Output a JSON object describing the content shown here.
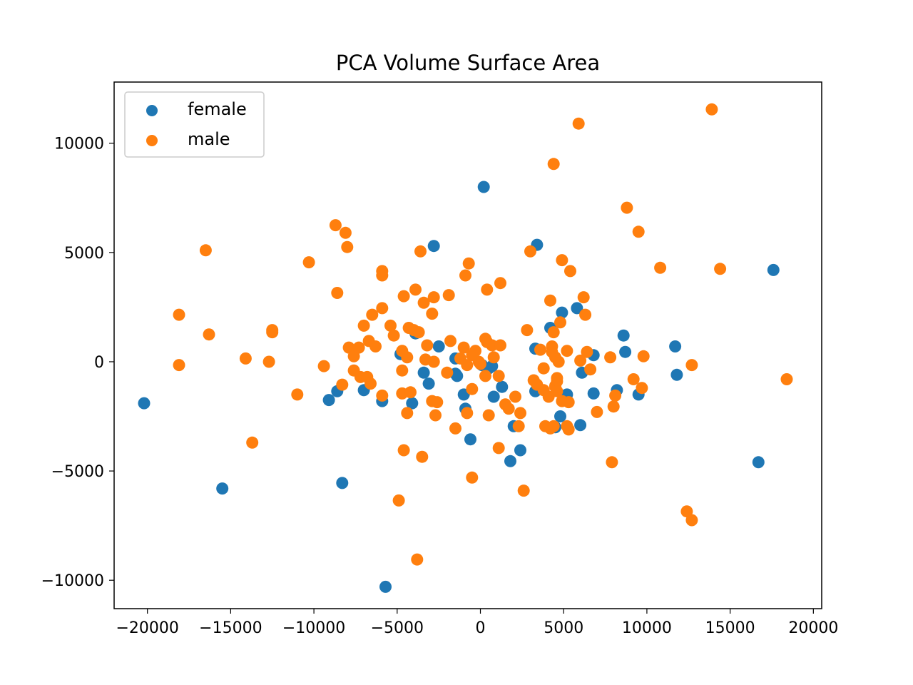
{
  "chart_data": {
    "type": "scatter",
    "title": "PCA Volume Surface Area",
    "xlabel": "",
    "ylabel": "",
    "xlim": [
      -22000,
      20500
    ],
    "ylim": [
      -11300,
      12800
    ],
    "x_ticks": [
      -20000,
      -15000,
      -10000,
      -5000,
      0,
      5000,
      10000,
      15000,
      20000
    ],
    "x_tick_labels": [
      "−20000",
      "−15000",
      "−10000",
      "−5000",
      "0",
      "5000",
      "10000",
      "15000",
      "20000"
    ],
    "y_ticks": [
      -10000,
      -5000,
      0,
      5000,
      10000
    ],
    "y_tick_labels": [
      "−10000",
      "−5000",
      "0",
      "5000",
      "10000"
    ],
    "grid": false,
    "legend_position": "upper-left",
    "series": [
      {
        "name": "female",
        "color": "#1f77b4",
        "points": [
          [
            -20200,
            -1900
          ],
          [
            -15500,
            -5800
          ],
          [
            -9100,
            -1750
          ],
          [
            -8600,
            -1350
          ],
          [
            -8300,
            -5550
          ],
          [
            -7000,
            -1300
          ],
          [
            -5900,
            -1800
          ],
          [
            -5700,
            -10300
          ],
          [
            -4800,
            350
          ],
          [
            -4100,
            -1900
          ],
          [
            -3900,
            1300
          ],
          [
            -3400,
            -500
          ],
          [
            -3100,
            -1000
          ],
          [
            -2800,
            5300
          ],
          [
            -2500,
            700
          ],
          [
            -1500,
            -550
          ],
          [
            -1500,
            150
          ],
          [
            -1400,
            -650
          ],
          [
            -1000,
            -1500
          ],
          [
            -900,
            -2150
          ],
          [
            -600,
            -3550
          ],
          [
            100,
            -150
          ],
          [
            200,
            8000
          ],
          [
            500,
            -300
          ],
          [
            700,
            -200
          ],
          [
            800,
            -1600
          ],
          [
            1300,
            -1150
          ],
          [
            1800,
            -4550
          ],
          [
            2000,
            -2950
          ],
          [
            2400,
            -4050
          ],
          [
            3300,
            -1350
          ],
          [
            3300,
            600
          ],
          [
            3400,
            5350
          ],
          [
            4200,
            1550
          ],
          [
            4500,
            -3000
          ],
          [
            4800,
            -2500
          ],
          [
            4900,
            2250
          ],
          [
            5200,
            -1500
          ],
          [
            5800,
            2450
          ],
          [
            6000,
            -2900
          ],
          [
            6100,
            -500
          ],
          [
            6800,
            300
          ],
          [
            6800,
            -1450
          ],
          [
            8200,
            -1300
          ],
          [
            8600,
            1200
          ],
          [
            8700,
            450
          ],
          [
            9500,
            -1500
          ],
          [
            11700,
            700
          ],
          [
            11800,
            -600
          ],
          [
            16700,
            -4600
          ],
          [
            17600,
            4200
          ]
        ]
      },
      {
        "name": "male",
        "color": "#ff7f0e",
        "points": [
          [
            -18100,
            2150
          ],
          [
            -18100,
            -150
          ],
          [
            -16500,
            5100
          ],
          [
            -16300,
            1250
          ],
          [
            -14100,
            150
          ],
          [
            -13700,
            -3700
          ],
          [
            -12700,
            0
          ],
          [
            -12500,
            1450
          ],
          [
            -12500,
            1350
          ],
          [
            -11000,
            -1500
          ],
          [
            -10300,
            4550
          ],
          [
            -9400,
            -200
          ],
          [
            -8700,
            6250
          ],
          [
            -8600,
            3150
          ],
          [
            -8300,
            -1050
          ],
          [
            -8100,
            5900
          ],
          [
            -8000,
            5250
          ],
          [
            -7900,
            650
          ],
          [
            -7600,
            250
          ],
          [
            -7600,
            -400
          ],
          [
            -7300,
            650
          ],
          [
            -7200,
            -700
          ],
          [
            -7000,
            1650
          ],
          [
            -6800,
            -700
          ],
          [
            -6700,
            950
          ],
          [
            -6600,
            -1000
          ],
          [
            -6500,
            2150
          ],
          [
            -6300,
            700
          ],
          [
            -5900,
            2450
          ],
          [
            -5900,
            4150
          ],
          [
            -5900,
            3950
          ],
          [
            -5900,
            -1550
          ],
          [
            -5400,
            1650
          ],
          [
            -5200,
            1200
          ],
          [
            -4900,
            -6350
          ],
          [
            -4700,
            -1450
          ],
          [
            -4700,
            500
          ],
          [
            -4700,
            -400
          ],
          [
            -4600,
            3000
          ],
          [
            -4600,
            -4050
          ],
          [
            -4400,
            200
          ],
          [
            -4400,
            -2350
          ],
          [
            -4300,
            1550
          ],
          [
            -4200,
            -1400
          ],
          [
            -4000,
            1450
          ],
          [
            -3900,
            3300
          ],
          [
            -3800,
            -9050
          ],
          [
            -3700,
            1350
          ],
          [
            -3600,
            5050
          ],
          [
            -3500,
            -4350
          ],
          [
            -3400,
            2700
          ],
          [
            -3300,
            100
          ],
          [
            -3200,
            750
          ],
          [
            -2900,
            2200
          ],
          [
            -2900,
            -1800
          ],
          [
            -2800,
            2950
          ],
          [
            -2800,
            0
          ],
          [
            -2700,
            -2450
          ],
          [
            -2600,
            -1850
          ],
          [
            -2000,
            -500
          ],
          [
            -1900,
            3050
          ],
          [
            -1800,
            950
          ],
          [
            -1500,
            -3050
          ],
          [
            -1200,
            150
          ],
          [
            -1000,
            650
          ],
          [
            -900,
            3950
          ],
          [
            -800,
            -150
          ],
          [
            -800,
            -2350
          ],
          [
            -700,
            4500
          ],
          [
            -500,
            -5300
          ],
          [
            -500,
            300
          ],
          [
            -500,
            -1250
          ],
          [
            -300,
            500
          ],
          [
            -100,
            0
          ],
          [
            0,
            -100
          ],
          [
            300,
            1050
          ],
          [
            300,
            -650
          ],
          [
            400,
            900
          ],
          [
            400,
            3300
          ],
          [
            500,
            -2450
          ],
          [
            700,
            750
          ],
          [
            800,
            200
          ],
          [
            1100,
            -3950
          ],
          [
            1100,
            -650
          ],
          [
            1200,
            3600
          ],
          [
            1200,
            750
          ],
          [
            1500,
            -1950
          ],
          [
            1700,
            -2150
          ],
          [
            2100,
            -1600
          ],
          [
            2300,
            -2950
          ],
          [
            2400,
            -2350
          ],
          [
            2600,
            -5900
          ],
          [
            2800,
            1450
          ],
          [
            3000,
            5050
          ],
          [
            3200,
            -850
          ],
          [
            3400,
            -1050
          ],
          [
            3600,
            550
          ],
          [
            3800,
            -300
          ],
          [
            3800,
            -1300
          ],
          [
            3900,
            -2950
          ],
          [
            4100,
            -1600
          ],
          [
            4200,
            2800
          ],
          [
            4200,
            -3050
          ],
          [
            4300,
            450
          ],
          [
            4300,
            700
          ],
          [
            4400,
            9050
          ],
          [
            4400,
            -2950
          ],
          [
            4400,
            1350
          ],
          [
            4500,
            -1150
          ],
          [
            4500,
            -1100
          ],
          [
            4500,
            200
          ],
          [
            4600,
            -750
          ],
          [
            4600,
            -900
          ],
          [
            4600,
            -1350
          ],
          [
            4700,
            0
          ],
          [
            4800,
            1800
          ],
          [
            4900,
            4650
          ],
          [
            4900,
            -1800
          ],
          [
            5200,
            500
          ],
          [
            5200,
            -2950
          ],
          [
            5300,
            -3100
          ],
          [
            5300,
            -1850
          ],
          [
            5400,
            4150
          ],
          [
            5900,
            10900
          ],
          [
            6000,
            50
          ],
          [
            6200,
            2950
          ],
          [
            6300,
            2150
          ],
          [
            6400,
            450
          ],
          [
            6600,
            -350
          ],
          [
            7000,
            -2300
          ],
          [
            7800,
            200
          ],
          [
            7900,
            -4600
          ],
          [
            8000,
            -2050
          ],
          [
            8100,
            -1550
          ],
          [
            8800,
            7050
          ],
          [
            9200,
            -800
          ],
          [
            9500,
            5950
          ],
          [
            9700,
            -1200
          ],
          [
            9800,
            250
          ],
          [
            10800,
            4300
          ],
          [
            12400,
            -6850
          ],
          [
            12700,
            -7250
          ],
          [
            12700,
            -150
          ],
          [
            13900,
            11550
          ],
          [
            14400,
            4250
          ],
          [
            18400,
            -800
          ]
        ]
      }
    ]
  }
}
